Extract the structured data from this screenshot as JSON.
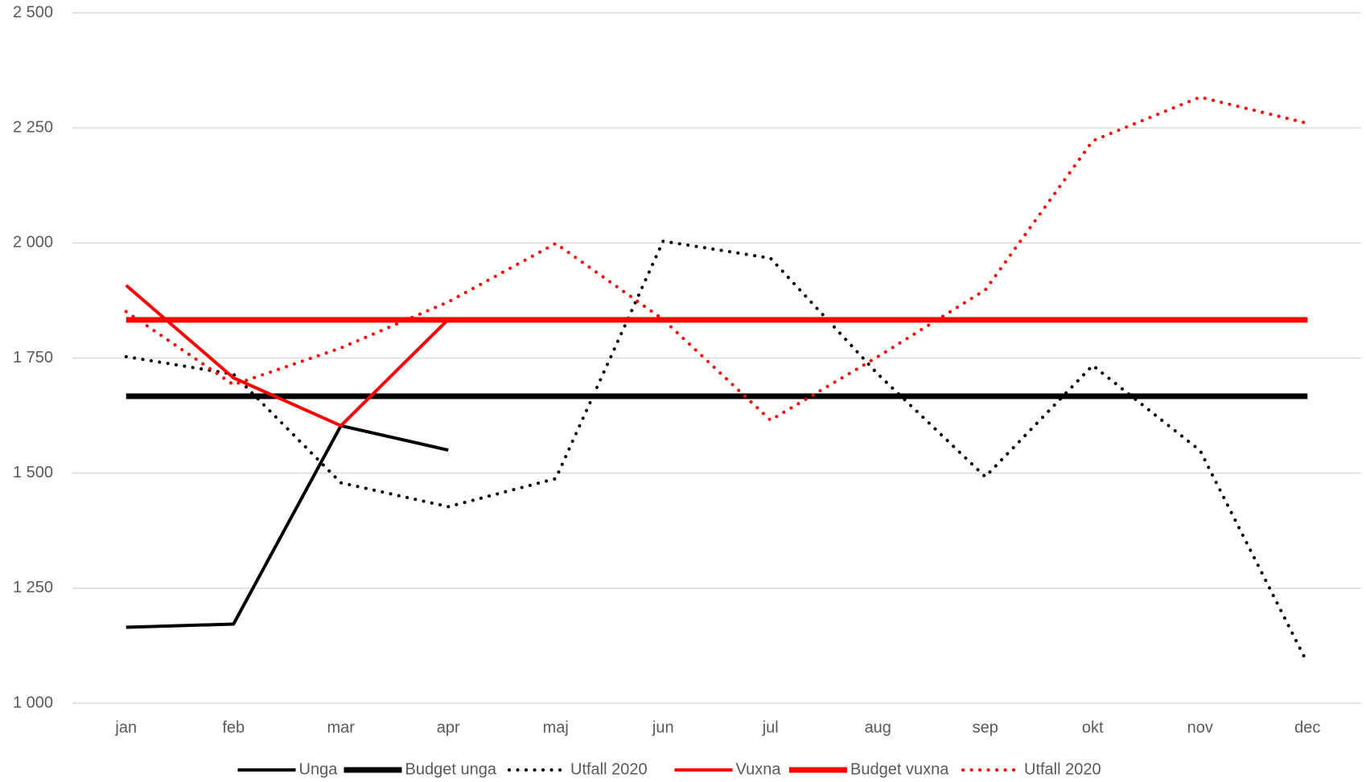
{
  "chart_data": {
    "type": "line",
    "categories": [
      "jan",
      "feb",
      "mar",
      "apr",
      "maj",
      "jun",
      "jul",
      "aug",
      "sep",
      "okt",
      "nov",
      "dec"
    ],
    "series": [
      {
        "name": "Unga",
        "color": "#000000",
        "width": 4,
        "dash": "solid",
        "values": [
          1165,
          1172,
          1603,
          1550,
          null,
          null,
          null,
          null,
          null,
          null,
          null,
          null
        ]
      },
      {
        "name": "Budget unga",
        "color": "#000000",
        "width": 7,
        "dash": "solid",
        "values": [
          1667,
          1667,
          1667,
          1667,
          1667,
          1667,
          1667,
          1667,
          1667,
          1667,
          1667,
          1667
        ]
      },
      {
        "name": "Utfall 2020",
        "color": "#000000",
        "width": 4,
        "dash": "dotted",
        "values": [
          1753,
          1715,
          1479,
          1427,
          1488,
          2004,
          1967,
          1715,
          1492,
          1734,
          1549,
          1087
        ]
      },
      {
        "name": "Vuxna",
        "color": "#ff0000",
        "width": 4,
        "dash": "solid",
        "values": [
          1908,
          1707,
          1603,
          1834,
          null,
          null,
          null,
          null,
          null,
          null,
          null,
          null
        ]
      },
      {
        "name": "Budget vuxna",
        "color": "#ff0000",
        "width": 7,
        "dash": "solid",
        "values": [
          1833,
          1833,
          1833,
          1833,
          1833,
          1833,
          1833,
          1833,
          1833,
          1833,
          1833,
          1833
        ]
      },
      {
        "name": "Utfall 2020",
        "color": "#ff0000",
        "width": 4,
        "dash": "dotted",
        "values": [
          1851,
          1692,
          1772,
          1872,
          1999,
          1834,
          1615,
          1753,
          1898,
          2222,
          2317,
          2260
        ]
      }
    ],
    "ylim": [
      1000,
      2500
    ],
    "yticks": [
      {
        "value": 1000,
        "label": "1 000"
      },
      {
        "value": 1250,
        "label": "1 250"
      },
      {
        "value": 1500,
        "label": "1 500"
      },
      {
        "value": 1750,
        "label": "1 750"
      },
      {
        "value": 2000,
        "label": "2 000"
      },
      {
        "value": 2250,
        "label": "2 250"
      },
      {
        "value": 2500,
        "label": "2 500"
      }
    ],
    "grid": true,
    "legend": "bottom"
  }
}
